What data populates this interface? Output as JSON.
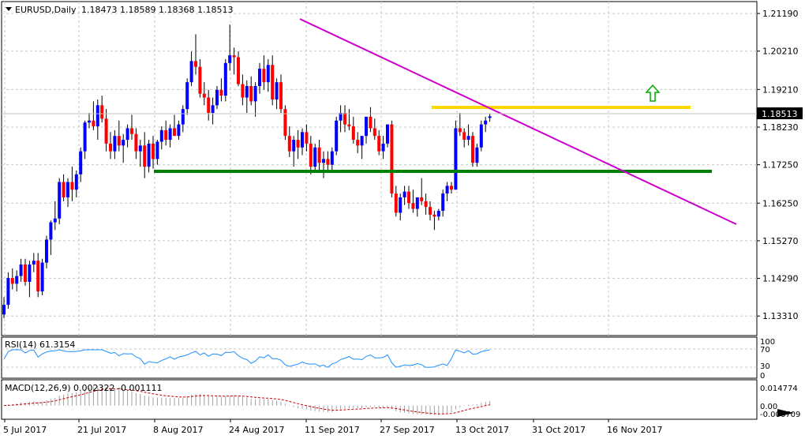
{
  "header": {
    "symbol_label": "EURUSD,Daily",
    "ohlc_text": "1.18473 1.18589 1.18368 1.18513",
    "menu_icon": "triangle-down-icon"
  },
  "price_axis": {
    "ticks": [
      "1.21190",
      "1.20210",
      "1.19210",
      "1.18230",
      "1.17250",
      "1.16250",
      "1.15270",
      "1.14290",
      "1.13310"
    ],
    "current_price_label": "1.18513"
  },
  "time_axis": {
    "labels": [
      "5 Jul 2017",
      "21 Jul 2017",
      "8 Aug 2017",
      "24 Aug 2017",
      "11 Sep 2017",
      "27 Sep 2017",
      "13 Oct 2017",
      "31 Oct 2017",
      "16 Nov 2017"
    ]
  },
  "rsi_panel": {
    "title": "RSI(14) 61.3154",
    "ticks": [
      "100",
      "70",
      "30",
      "0"
    ]
  },
  "macd_panel": {
    "title": "MACD(12,26,9) 0.002322 -0.001111",
    "ticks": [
      "0.014774",
      "0.00",
      "-0.006709"
    ]
  },
  "annotations": {
    "breakout_arrow": "arrow-up-icon",
    "resistance_color": "#FFD700",
    "support_color": "#008000",
    "trendline_color": "#CC00CC",
    "arrow_color": "#00AA00"
  },
  "colors": {
    "bull": "#0000FF",
    "bear": "#FF0000",
    "rsi_line": "#1E90FF",
    "macd_signal": "#CC0000",
    "grid": "#C8C8C8"
  },
  "chart_data": {
    "type": "candlestick",
    "series": [
      {
        "name": "EURUSD",
        "ohlc": [
          [
            1.1335,
            1.138,
            1.1325,
            1.136
          ],
          [
            1.136,
            1.1445,
            1.135,
            1.143
          ],
          [
            1.143,
            1.1455,
            1.14,
            1.1415
          ],
          [
            1.1415,
            1.145,
            1.1395,
            1.1435
          ],
          [
            1.1435,
            1.148,
            1.142,
            1.1465
          ],
          [
            1.1465,
            1.148,
            1.141,
            1.142
          ],
          [
            1.142,
            1.1475,
            1.138,
            1.1465
          ],
          [
            1.1465,
            1.1495,
            1.1445,
            1.1475
          ],
          [
            1.1475,
            1.1495,
            1.138,
            1.1395
          ],
          [
            1.1395,
            1.148,
            1.1385,
            1.147
          ],
          [
            1.147,
            1.154,
            1.1455,
            1.153
          ],
          [
            1.153,
            1.158,
            1.149,
            1.1575
          ],
          [
            1.1575,
            1.163,
            1.1555,
            1.1585
          ],
          [
            1.1585,
            1.169,
            1.157,
            1.168
          ],
          [
            1.168,
            1.17,
            1.163,
            1.164
          ],
          [
            1.164,
            1.169,
            1.1615,
            1.168
          ],
          [
            1.168,
            1.172,
            1.163,
            1.166
          ],
          [
            1.166,
            1.171,
            1.164,
            1.17
          ],
          [
            1.17,
            1.177,
            1.168,
            1.176
          ],
          [
            1.176,
            1.184,
            1.174,
            1.1835
          ],
          [
            1.1835,
            1.186,
            1.182,
            1.184
          ],
          [
            1.184,
            1.189,
            1.1815,
            1.1825
          ],
          [
            1.1825,
            1.1895,
            1.179,
            1.188
          ],
          [
            1.188,
            1.1905,
            1.1835,
            1.1845
          ],
          [
            1.1845,
            1.187,
            1.176,
            1.178
          ],
          [
            1.178,
            1.181,
            1.174,
            1.176
          ],
          [
            1.176,
            1.1815,
            1.174,
            1.18
          ],
          [
            1.18,
            1.184,
            1.176,
            1.1775
          ],
          [
            1.1775,
            1.1805,
            1.173,
            1.179
          ],
          [
            1.179,
            1.183,
            1.177,
            1.182
          ],
          [
            1.182,
            1.1855,
            1.179,
            1.1805
          ],
          [
            1.1805,
            1.182,
            1.174,
            1.176
          ],
          [
            1.176,
            1.179,
            1.172,
            1.1775
          ],
          [
            1.1775,
            1.181,
            1.169,
            1.172
          ],
          [
            1.172,
            1.179,
            1.1705,
            1.178
          ],
          [
            1.178,
            1.18,
            1.1715,
            1.174
          ],
          [
            1.174,
            1.179,
            1.1725,
            1.1785
          ],
          [
            1.1785,
            1.1825,
            1.1765,
            1.1815
          ],
          [
            1.1815,
            1.184,
            1.1775,
            1.179
          ],
          [
            1.179,
            1.183,
            1.177,
            1.182
          ],
          [
            1.182,
            1.1855,
            1.18,
            1.18
          ],
          [
            1.18,
            1.184,
            1.179,
            1.183
          ],
          [
            1.183,
            1.188,
            1.181,
            1.187
          ],
          [
            1.187,
            1.195,
            1.1855,
            1.194
          ],
          [
            1.194,
            1.202,
            1.193,
            1.1995
          ],
          [
            1.1995,
            1.2065,
            1.196,
            1.198
          ],
          [
            1.198,
            1.2,
            1.19,
            1.191
          ],
          [
            1.191,
            1.194,
            1.188,
            1.19
          ],
          [
            1.19,
            1.192,
            1.184,
            1.186
          ],
          [
            1.186,
            1.19,
            1.183,
            1.188
          ],
          [
            1.188,
            1.193,
            1.187,
            1.192
          ],
          [
            1.192,
            1.195,
            1.189,
            1.1905
          ],
          [
            1.1905,
            1.2,
            1.189,
            1.199
          ],
          [
            1.199,
            1.209,
            1.197,
            1.201
          ],
          [
            1.201,
            1.203,
            1.196,
            1.2005
          ],
          [
            1.2005,
            1.202,
            1.193,
            1.1935
          ],
          [
            1.1935,
            1.196,
            1.188,
            1.19
          ],
          [
            1.19,
            1.1945,
            1.186,
            1.193
          ],
          [
            1.193,
            1.1955,
            1.188,
            1.189
          ],
          [
            1.189,
            1.194,
            1.185,
            1.193
          ],
          [
            1.193,
            1.199,
            1.191,
            1.1975
          ],
          [
            1.1975,
            1.201,
            1.192,
            1.194
          ],
          [
            1.194,
            1.2,
            1.1915,
            1.1985
          ],
          [
            1.1985,
            1.201,
            1.188,
            1.1895
          ],
          [
            1.1895,
            1.195,
            1.187,
            1.194
          ],
          [
            1.194,
            1.196,
            1.186,
            1.187
          ],
          [
            1.187,
            1.188,
            1.179,
            1.18
          ],
          [
            1.18,
            1.1825,
            1.1745,
            1.176
          ],
          [
            1.176,
            1.18,
            1.172,
            1.179
          ],
          [
            1.179,
            1.1815,
            1.174,
            1.177
          ],
          [
            1.177,
            1.182,
            1.175,
            1.181
          ],
          [
            1.181,
            1.183,
            1.176,
            1.178
          ],
          [
            1.178,
            1.18,
            1.17,
            1.172
          ],
          [
            1.172,
            1.178,
            1.171,
            1.177
          ],
          [
            1.177,
            1.179,
            1.171,
            1.173
          ],
          [
            1.173,
            1.176,
            1.169,
            1.174
          ],
          [
            1.174,
            1.176,
            1.171,
            1.1725
          ],
          [
            1.1725,
            1.177,
            1.1705,
            1.176
          ],
          [
            1.176,
            1.185,
            1.175,
            1.184
          ],
          [
            1.184,
            1.188,
            1.181,
            1.186
          ],
          [
            1.186,
            1.188,
            1.181,
            1.183
          ],
          [
            1.183,
            1.187,
            1.1815,
            1.1825
          ],
          [
            1.1825,
            1.185,
            1.178,
            1.179
          ],
          [
            1.179,
            1.181,
            1.1755,
            1.1775
          ],
          [
            1.1775,
            1.18,
            1.174,
            1.18
          ],
          [
            1.18,
            1.185,
            1.178,
            1.185
          ],
          [
            1.185,
            1.1875,
            1.181,
            1.182
          ],
          [
            1.182,
            1.1845,
            1.179,
            1.18
          ],
          [
            1.18,
            1.1815,
            1.175,
            1.176
          ],
          [
            1.176,
            1.18,
            1.174,
            1.178
          ],
          [
            1.178,
            1.183,
            1.177,
            1.183
          ],
          [
            1.183,
            1.184,
            1.164,
            1.165
          ],
          [
            1.165,
            1.167,
            1.159,
            1.16
          ],
          [
            1.16,
            1.165,
            1.158,
            1.164
          ],
          [
            1.164,
            1.167,
            1.162,
            1.1655
          ],
          [
            1.1655,
            1.167,
            1.161,
            1.1625
          ],
          [
            1.1625,
            1.166,
            1.16,
            1.161
          ],
          [
            1.161,
            1.164,
            1.159,
            1.164
          ],
          [
            1.164,
            1.169,
            1.162,
            1.163
          ],
          [
            1.163,
            1.165,
            1.1595,
            1.1615
          ],
          [
            1.1615,
            1.163,
            1.158,
            1.1595
          ],
          [
            1.1595,
            1.1605,
            1.1555,
            1.159
          ],
          [
            1.159,
            1.161,
            1.158,
            1.1605
          ],
          [
            1.1605,
            1.166,
            1.159,
            1.165
          ],
          [
            1.165,
            1.168,
            1.163,
            1.167
          ],
          [
            1.167,
            1.168,
            1.165,
            1.166
          ],
          [
            1.166,
            1.184,
            1.166,
            1.182
          ],
          [
            1.182,
            1.186,
            1.18,
            1.181
          ],
          [
            1.181,
            1.182,
            1.177,
            1.179
          ],
          [
            1.179,
            1.183,
            1.1775,
            1.18
          ],
          [
            1.18,
            1.181,
            1.172,
            1.173
          ],
          [
            1.173,
            1.178,
            1.172,
            1.177
          ],
          [
            1.177,
            1.184,
            1.176,
            1.183
          ],
          [
            1.183,
            1.185,
            1.181,
            1.184
          ],
          [
            1.1847,
            1.1859,
            1.1837,
            1.1851
          ]
        ]
      }
    ],
    "ylim": [
      1.128,
      1.215
    ],
    "grid": true
  }
}
